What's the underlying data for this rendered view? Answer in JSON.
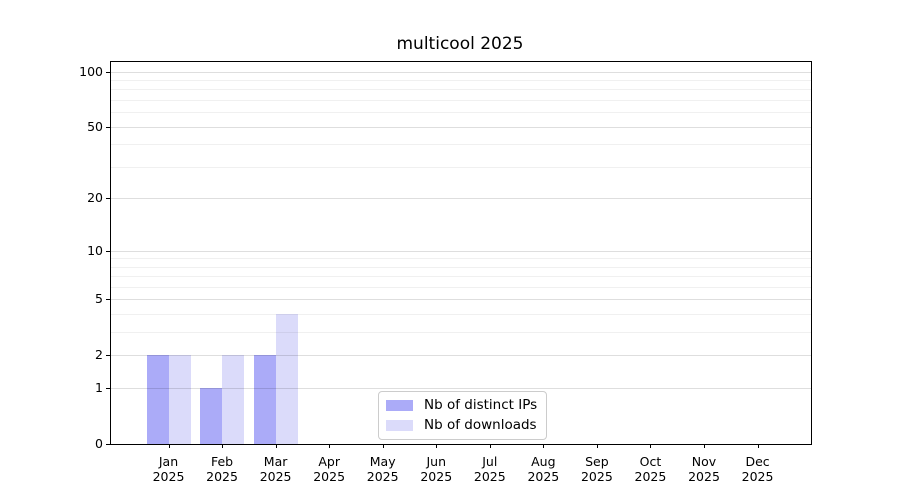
{
  "chart_data": {
    "type": "bar",
    "title": "multicool 2025",
    "x_categories": [
      "Jan",
      "Feb",
      "Mar",
      "Apr",
      "May",
      "Jun",
      "Jul",
      "Aug",
      "Sep",
      "Oct",
      "Nov",
      "Dec"
    ],
    "x_sub_label": "2025",
    "series": [
      {
        "name": "Nb of distinct IPs",
        "color": "#ababf8",
        "values": [
          2,
          1,
          2,
          0,
          0,
          0,
          0,
          0,
          0,
          0,
          0,
          0
        ]
      },
      {
        "name": "Nb of downloads",
        "color": "#dbdbfa",
        "values": [
          2,
          2,
          4,
          0,
          0,
          0,
          0,
          0,
          0,
          0,
          0,
          0
        ]
      }
    ],
    "y_axis": {
      "scale": "log1p",
      "major_ticks": [
        0,
        1,
        2,
        5,
        10,
        20,
        50,
        100
      ],
      "minor_gridlines": [
        3,
        4,
        6,
        7,
        8,
        9,
        30,
        40,
        60,
        70,
        80,
        90
      ]
    },
    "grid": "horizontal",
    "legend_position": "bottom-center",
    "colors": {
      "distinct_ips": "#ababf8",
      "downloads": "#dbdbfa",
      "axis": "#000000",
      "grid_major": "#dedede",
      "grid_minor": "#f0f0f0"
    }
  }
}
